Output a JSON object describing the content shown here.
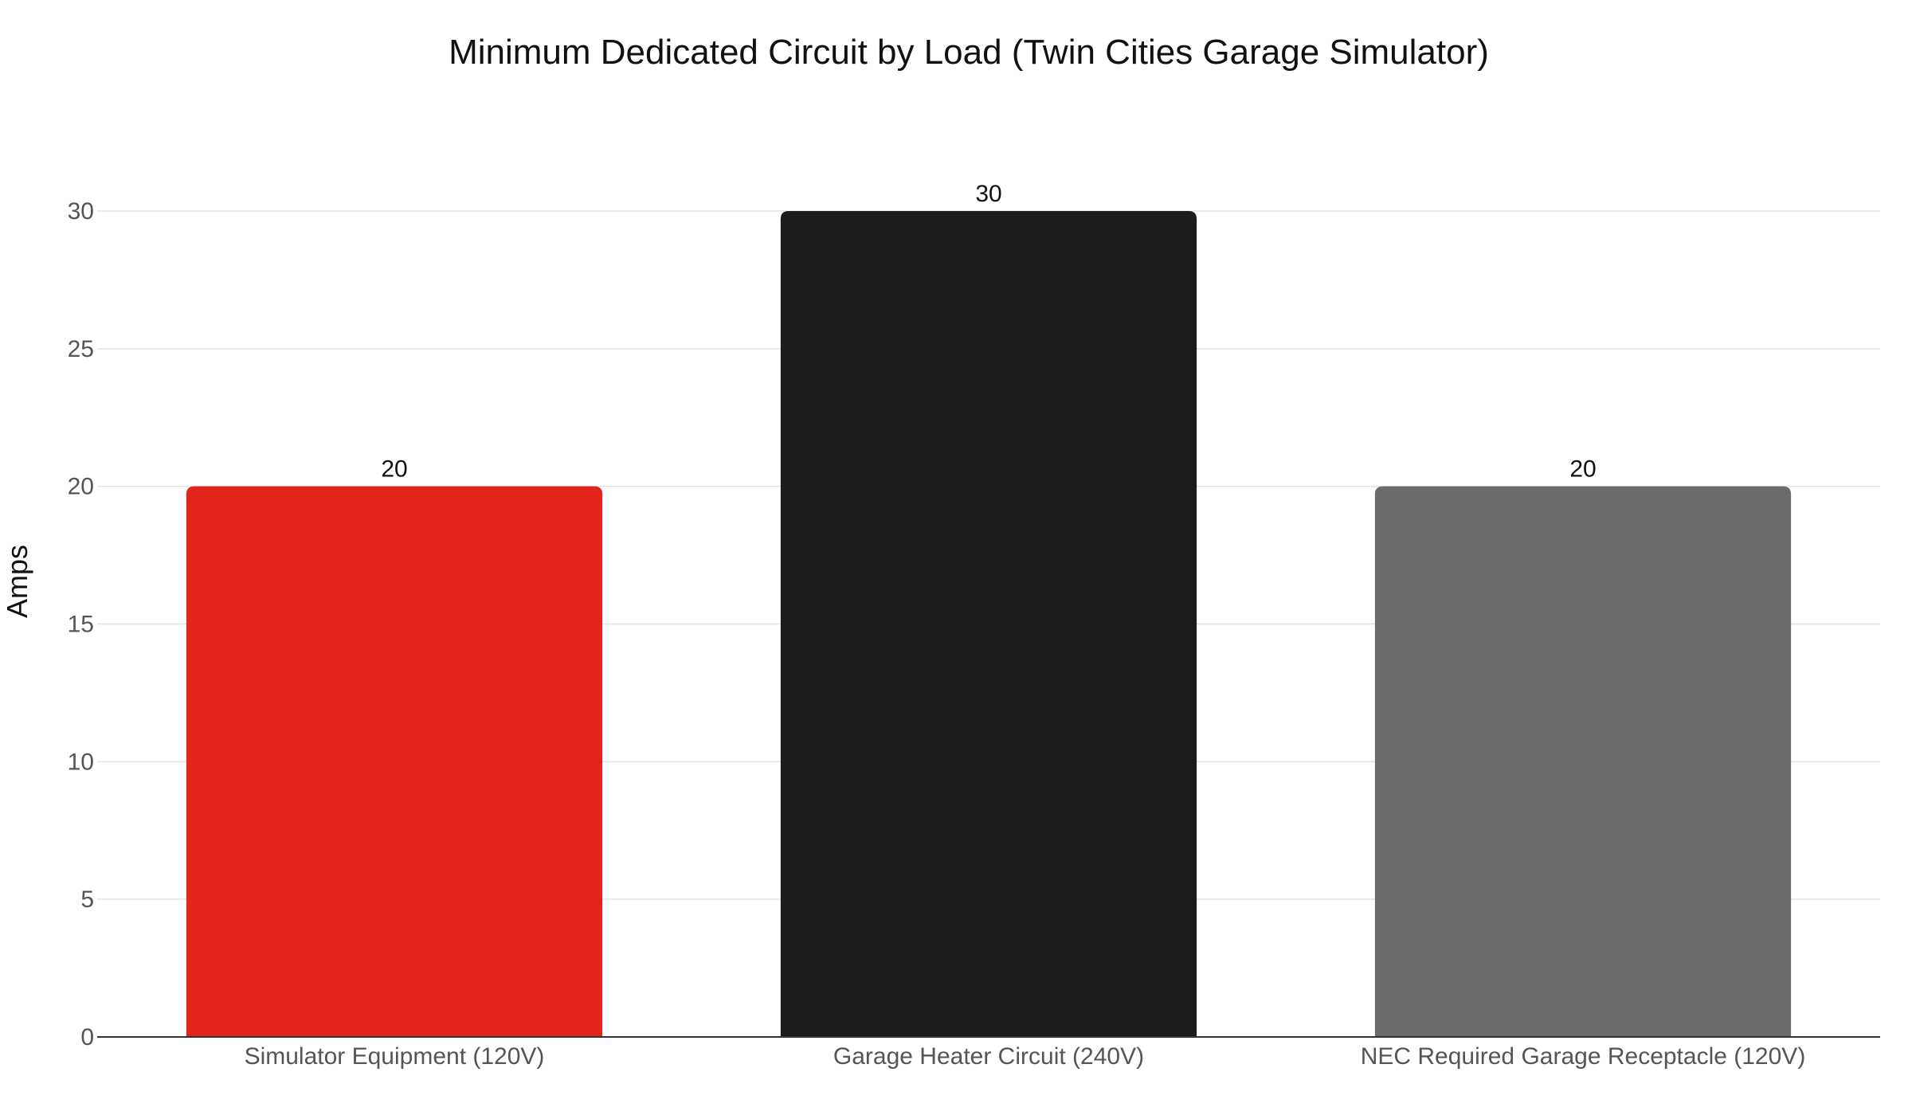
{
  "chart_data": {
    "type": "bar",
    "title": "Minimum Dedicated Circuit by Load (Twin Cities Garage Simulator)",
    "xlabel": "",
    "ylabel": "Amps",
    "categories": [
      "Simulator Equipment (120V)",
      "Garage Heater Circuit (240V)",
      "NEC Required Garage Receptacle (120V)"
    ],
    "values": [
      20,
      30,
      20
    ],
    "data_labels": [
      "20",
      "30",
      "20"
    ],
    "bar_colors": [
      "#e1251b",
      "#1c1c1c",
      "#6b6b6b"
    ],
    "ylim": [
      0,
      30
    ],
    "yticks": [
      0,
      5,
      10,
      15,
      20,
      25,
      30
    ],
    "grid": true,
    "legend": "none"
  }
}
